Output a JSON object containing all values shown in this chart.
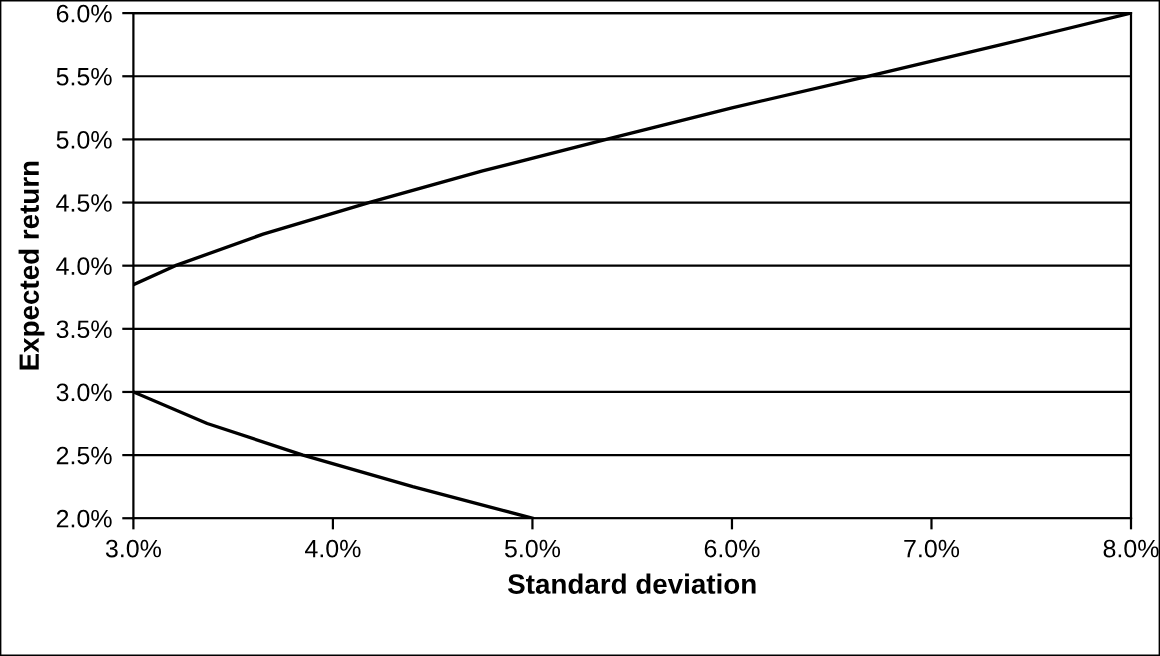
{
  "chart_data": {
    "type": "line",
    "xlabel": "Standard deviation",
    "ylabel": "Expected return",
    "series": [
      {
        "color": "#000000",
        "x": [
          5.0,
          4.4,
          3.85,
          3.37,
          3.0,
          null,
          3.0,
          3.21,
          3.65,
          4.18,
          4.75,
          5.37,
          6.0,
          6.68,
          7.35,
          8.0
        ],
        "values": [
          2.0,
          2.25,
          2.5,
          2.75,
          3.0,
          null,
          3.85,
          4.0,
          4.25,
          4.5,
          4.75,
          5.0,
          5.25,
          5.5,
          5.75,
          6.0
        ]
      }
    ],
    "xlim": [
      3,
      8
    ],
    "ylim": [
      2,
      6
    ],
    "xticks": [
      {
        "value": 3,
        "label": "3.0%"
      },
      {
        "value": 4,
        "label": "4.0%"
      },
      {
        "value": 5,
        "label": "5.0%"
      },
      {
        "value": 6,
        "label": "6.0%"
      },
      {
        "value": 7,
        "label": "7.0%"
      },
      {
        "value": 8,
        "label": "8.0%"
      }
    ],
    "yticks": [
      {
        "value": 2,
        "label": "2.0%"
      },
      {
        "value": 2.5,
        "label": "2.5%"
      },
      {
        "value": 3,
        "label": "3.0%"
      },
      {
        "value": 3.5,
        "label": "3.5%"
      },
      {
        "value": 4,
        "label": "4.0%"
      },
      {
        "value": 4.5,
        "label": "4.5%"
      },
      {
        "value": 5,
        "label": "5.0%"
      },
      {
        "value": 5.5,
        "label": "5.5%"
      },
      {
        "value": 6,
        "label": "6.0%"
      }
    ],
    "grid": "y",
    "marker": "none",
    "line_style": "solid"
  }
}
